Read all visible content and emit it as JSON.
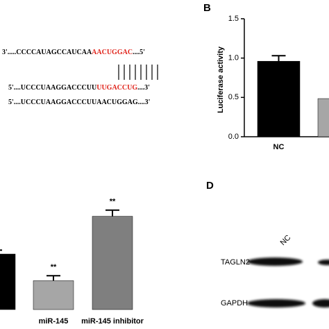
{
  "sequences": {
    "lines": [
      {
        "left": "3'.....CCCCAUAGCCAUCAA",
        "red": "AACUGGAC",
        "right": "....5'"
      },
      {
        "left": "5'....UCCCUAAGGACCCUU",
        "red": "UUGACCUG",
        "right": "....3'"
      },
      {
        "left": "5'....UCCCUAAGGACCCUUAACUGGAG....3'"
      }
    ]
  },
  "chart_data": [
    {
      "type": "bar",
      "panel_label": "B",
      "y_label": "Luciferase activity",
      "categories": [
        "NC",
        null
      ],
      "values": [
        0.96,
        0.485
      ],
      "errors": [
        0.07,
        null
      ],
      "colors": [
        "#000000",
        "#a6a6a6"
      ],
      "ylim": [
        0,
        1.5
      ],
      "yticks": [
        {
          "value": 0,
          "label": "0.0"
        },
        {
          "value": 0.5,
          "label": "0.5"
        },
        {
          "value": 1,
          "label": "1.0"
        },
        {
          "value": 1.5,
          "label": "1.5"
        }
      ],
      "axis": true
    },
    {
      "type": "bar",
      "categories": [
        null,
        "miR-145",
        "miR-145 inhibitor"
      ],
      "values": [
        1.0,
        0.52,
        1.68
      ],
      "errors": [
        0.07,
        0.09,
        0.11
      ],
      "annotations": [
        null,
        "**",
        "**"
      ],
      "colors": [
        "#000000",
        "#a6a6a6",
        "#7f7f7f"
      ],
      "ylim": [
        0,
        2
      ],
      "axis": false
    }
  ],
  "blot": {
    "panel_label": "D",
    "lane_label": "NC",
    "rows": [
      "TAGLN2",
      "GAPDH"
    ]
  }
}
